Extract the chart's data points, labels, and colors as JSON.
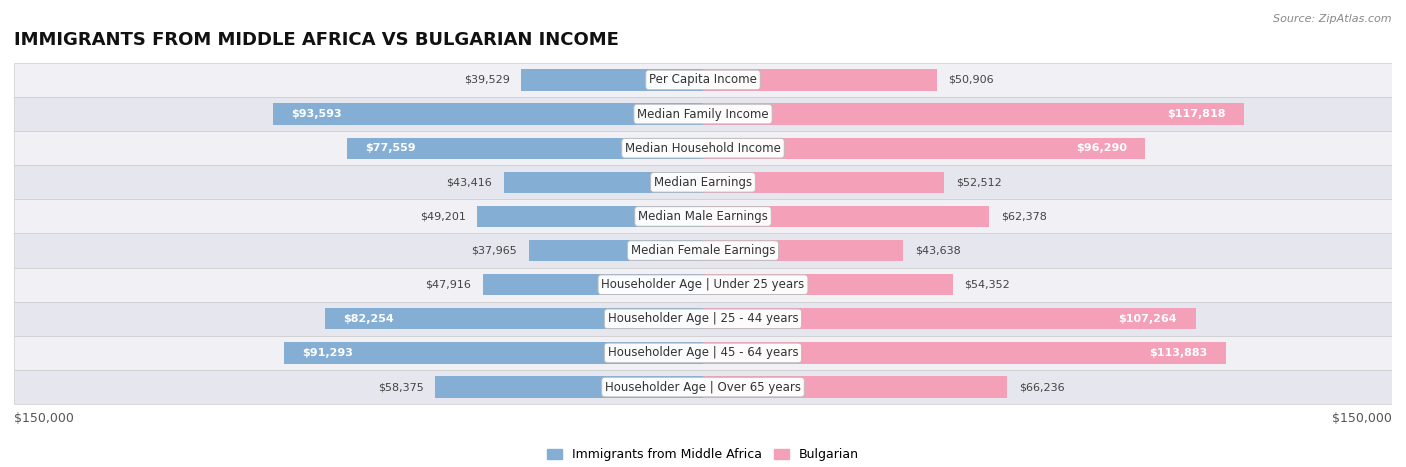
{
  "title": "IMMIGRANTS FROM MIDDLE AFRICA VS BULGARIAN INCOME",
  "source": "Source: ZipAtlas.com",
  "categories": [
    "Per Capita Income",
    "Median Family Income",
    "Median Household Income",
    "Median Earnings",
    "Median Male Earnings",
    "Median Female Earnings",
    "Householder Age | Under 25 years",
    "Householder Age | 25 - 44 years",
    "Householder Age | 45 - 64 years",
    "Householder Age | Over 65 years"
  ],
  "immigrants_values": [
    39529,
    93593,
    77559,
    43416,
    49201,
    37965,
    47916,
    82254,
    91293,
    58375
  ],
  "bulgarian_values": [
    50906,
    117818,
    96290,
    52512,
    62378,
    43638,
    54352,
    107264,
    113883,
    66236
  ],
  "immigrants_color": "#85aed4",
  "bulgarian_color": "#f4a0b8",
  "row_even_color": "#f0f0f5",
  "row_odd_color": "#e6e6ee",
  "max_value": 150000,
  "legend_immigrants": "Immigrants from Middle Africa",
  "legend_bulgarian": "Bulgarian",
  "title_fontsize": 13,
  "source_fontsize": 8,
  "label_fontsize": 8.5,
  "value_fontsize": 8,
  "axis_label_left": "$150,000",
  "axis_label_right": "$150,000"
}
